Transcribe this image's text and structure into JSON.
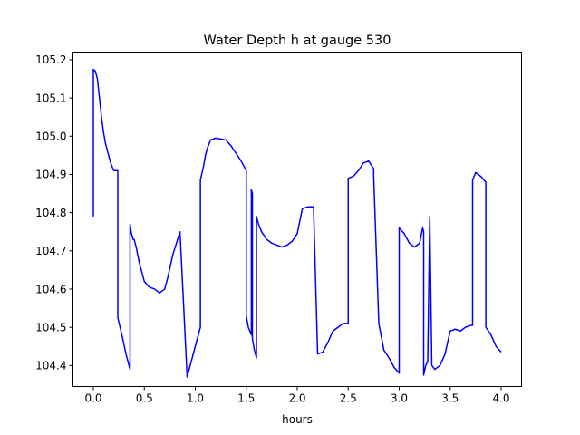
{
  "chart_data": {
    "type": "line",
    "title": "Water Depth h at gauge 530",
    "xlabel": "hours",
    "ylabel": "",
    "xlim": [
      -0.2,
      4.2
    ],
    "ylim": [
      104.345,
      105.22
    ],
    "xticks": [
      0.0,
      0.5,
      1.0,
      1.5,
      2.0,
      2.5,
      3.0,
      3.5,
      4.0
    ],
    "xtick_labels": [
      "0.0",
      "0.5",
      "1.0",
      "1.5",
      "2.0",
      "2.5",
      "3.0",
      "3.5",
      "4.0"
    ],
    "yticks": [
      104.4,
      104.5,
      104.6,
      104.7,
      104.8,
      104.9,
      105.0,
      105.1,
      105.2
    ],
    "ytick_labels": [
      "104.4",
      "104.5",
      "104.6",
      "104.7",
      "104.8",
      "104.9",
      "105.0",
      "105.1",
      "105.2"
    ],
    "grid": false,
    "series": [
      {
        "color": "#0000ff",
        "x": [
          0.0,
          0.0,
          0.02,
          0.04,
          0.06,
          0.08,
          0.1,
          0.12,
          0.14,
          0.17,
          0.2,
          0.24,
          0.24,
          0.28,
          0.32,
          0.36,
          0.36,
          0.37,
          0.38,
          0.39,
          0.4,
          0.42,
          0.45,
          0.5,
          0.55,
          0.6,
          0.65,
          0.7,
          0.73,
          0.78,
          0.85,
          0.92,
          0.92,
          1.05,
          1.05,
          1.08,
          1.1,
          1.12,
          1.15,
          1.2,
          1.3,
          1.35,
          1.4,
          1.45,
          1.5,
          1.5,
          1.52,
          1.55,
          1.55,
          1.56,
          1.56,
          1.58,
          1.6,
          1.6,
          1.62,
          1.65,
          1.7,
          1.75,
          1.8,
          1.85,
          1.9,
          1.95,
          2.0,
          2.05,
          2.1,
          2.14,
          2.16,
          2.2,
          2.2,
          2.25,
          2.3,
          2.35,
          2.4,
          2.45,
          2.5,
          2.5,
          2.55,
          2.6,
          2.65,
          2.7,
          2.75,
          2.75,
          2.8,
          2.85,
          2.9,
          2.95,
          3.0,
          3.0,
          3.05,
          3.1,
          3.15,
          3.2,
          3.23,
          3.24,
          3.24,
          3.26,
          3.28,
          3.3,
          3.3,
          3.32,
          3.35,
          3.4,
          3.45,
          3.5,
          3.55,
          3.6,
          3.65,
          3.7,
          3.72,
          3.72,
          3.75,
          3.8,
          3.85,
          3.85,
          3.9,
          3.95,
          4.0
        ],
        "y": [
          104.79,
          105.175,
          105.17,
          105.15,
          105.1,
          105.05,
          105.01,
          104.98,
          104.96,
          104.93,
          104.91,
          104.91,
          104.525,
          104.48,
          104.43,
          104.39,
          104.77,
          104.75,
          104.74,
          104.73,
          104.73,
          104.71,
          104.67,
          104.62,
          104.605,
          104.6,
          104.59,
          104.6,
          104.63,
          104.69,
          104.75,
          104.37,
          104.37,
          104.5,
          104.885,
          104.92,
          104.95,
          104.97,
          104.99,
          104.995,
          104.99,
          104.975,
          104.955,
          104.935,
          104.91,
          104.53,
          104.5,
          104.48,
          104.86,
          104.85,
          104.47,
          104.44,
          104.42,
          104.79,
          104.77,
          104.75,
          104.73,
          104.72,
          104.715,
          104.71,
          104.715,
          104.725,
          104.745,
          104.81,
          104.815,
          104.815,
          104.815,
          104.43,
          104.43,
          104.435,
          104.46,
          104.49,
          104.5,
          104.51,
          104.51,
          104.89,
          104.895,
          104.91,
          104.93,
          104.935,
          104.915,
          104.895,
          104.51,
          104.44,
          104.42,
          104.395,
          104.38,
          104.76,
          104.745,
          104.72,
          104.71,
          104.72,
          104.76,
          104.75,
          104.375,
          104.4,
          104.41,
          104.79,
          104.79,
          104.4,
          104.39,
          104.4,
          104.43,
          104.49,
          104.495,
          104.49,
          104.5,
          104.505,
          104.505,
          104.885,
          104.905,
          104.895,
          104.88,
          104.5,
          104.48,
          104.45,
          104.435
        ]
      }
    ]
  }
}
